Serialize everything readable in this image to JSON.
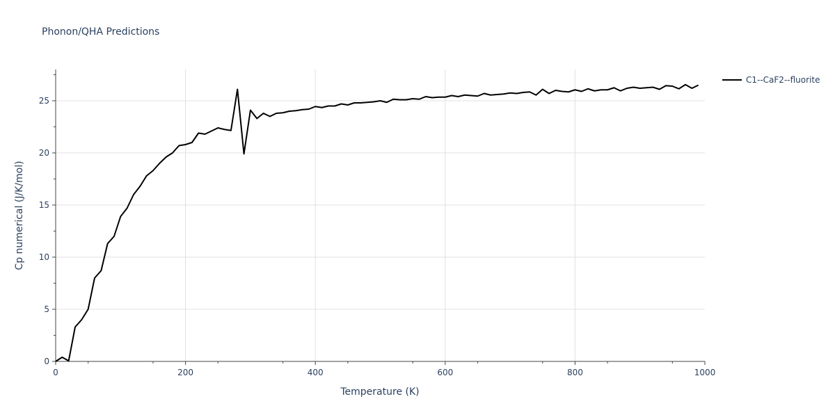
{
  "chart_data": {
    "type": "line",
    "title": "Phonon/QHA Predictions",
    "xlabel": "Temperature (K)",
    "ylabel": "Cp numerical (J/K/mol)",
    "xlim": [
      0,
      1000
    ],
    "ylim": [
      0,
      28
    ],
    "xticks": [
      0,
      200,
      400,
      600,
      800,
      1000
    ],
    "xtick_labels": [
      "0",
      "200",
      "400",
      "600",
      "800",
      "1000"
    ],
    "yticks": [
      0,
      5,
      10,
      15,
      20,
      25
    ],
    "ytick_labels": [
      "0",
      "5",
      "10",
      "15",
      "20",
      "25"
    ],
    "grid": true,
    "legend_position": "top-right",
    "series": [
      {
        "name": "C1--CaF2--fluorite",
        "color": "#000000",
        "x": [
          0,
          10,
          20,
          30,
          40,
          50,
          60,
          70,
          80,
          90,
          100,
          110,
          120,
          130,
          140,
          150,
          160,
          170,
          180,
          190,
          200,
          210,
          220,
          230,
          240,
          250,
          260,
          270,
          280,
          290,
          300,
          310,
          320,
          330,
          340,
          350,
          360,
          370,
          380,
          390,
          400,
          410,
          420,
          430,
          440,
          450,
          460,
          470,
          480,
          490,
          500,
          510,
          520,
          530,
          540,
          550,
          560,
          570,
          580,
          590,
          600,
          610,
          620,
          630,
          640,
          650,
          660,
          670,
          680,
          690,
          700,
          710,
          720,
          730,
          740,
          750,
          760,
          770,
          780,
          790,
          800,
          810,
          820,
          830,
          840,
          850,
          860,
          870,
          880,
          890,
          900,
          910,
          920,
          930,
          940,
          950,
          960,
          970,
          980,
          990
        ],
        "y": [
          0,
          0.4,
          0.05,
          3.3,
          4.0,
          5.0,
          8.0,
          8.7,
          11.3,
          12.0,
          13.9,
          14.7,
          16.0,
          16.8,
          17.8,
          18.3,
          19.0,
          19.6,
          20.0,
          20.7,
          20.8,
          21.0,
          21.9,
          21.8,
          22.1,
          22.4,
          22.25,
          22.15,
          26.1,
          19.9,
          24.1,
          23.3,
          23.8,
          23.5,
          23.8,
          23.85,
          24.0,
          24.05,
          24.15,
          24.2,
          24.45,
          24.35,
          24.5,
          24.5,
          24.7,
          24.6,
          24.8,
          24.8,
          24.85,
          24.9,
          25.0,
          24.85,
          25.15,
          25.1,
          25.1,
          25.2,
          25.15,
          25.4,
          25.3,
          25.35,
          25.35,
          25.5,
          25.4,
          25.55,
          25.5,
          25.45,
          25.7,
          25.55,
          25.6,
          25.65,
          25.75,
          25.7,
          25.8,
          25.85,
          25.55,
          26.1,
          25.7,
          26.0,
          25.9,
          25.85,
          26.05,
          25.9,
          26.15,
          25.95,
          26.05,
          26.05,
          26.25,
          25.95,
          26.2,
          26.3,
          26.2,
          26.25,
          26.3,
          26.1,
          26.45,
          26.4,
          26.15,
          26.55,
          26.2,
          26.5
        ]
      }
    ]
  }
}
